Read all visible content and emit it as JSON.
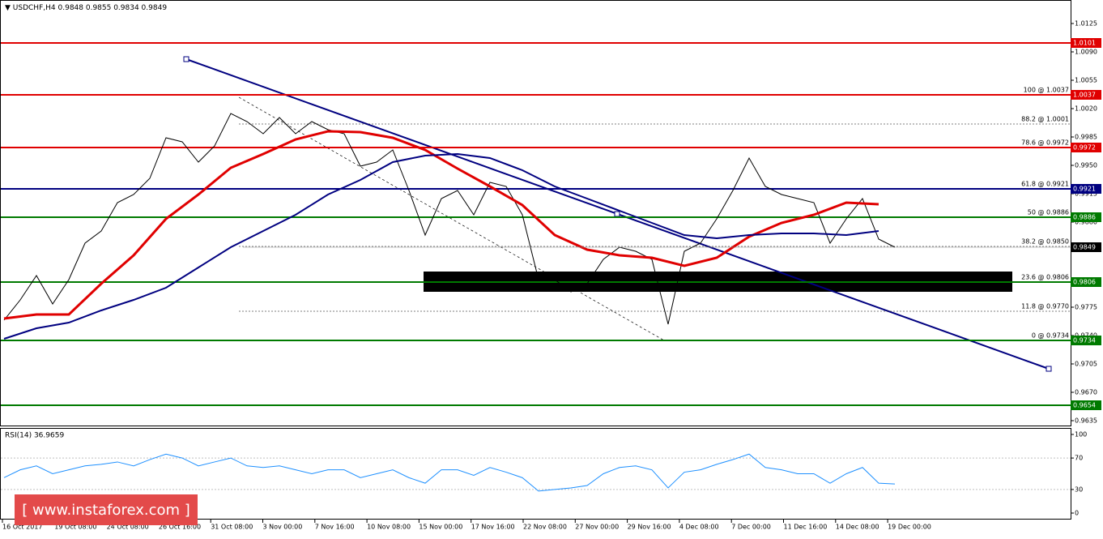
{
  "chart_data": {
    "type": "line",
    "title": "USDCHF,H4",
    "subtitle": "0.9848 0.9855 0.9834 0.9849",
    "ylim": [
      0.9629,
      1.0154
    ],
    "yticks": [
      {
        "value": 1.0125,
        "label": "1.0125"
      },
      {
        "value": 1.009,
        "label": "1.0090"
      },
      {
        "value": 1.0055,
        "label": "1.0055"
      },
      {
        "value": 1.002,
        "label": "1.0020"
      },
      {
        "value": 0.9985,
        "label": "0.9985"
      },
      {
        "value": 0.995,
        "label": "0.9950"
      },
      {
        "value": 0.9915,
        "label": "0.9915"
      },
      {
        "value": 0.988,
        "label": "0.9880"
      },
      {
        "value": 0.9775,
        "label": "0.9775"
      },
      {
        "value": 0.974,
        "label": "0.9740"
      },
      {
        "value": 0.9705,
        "label": "0.9705"
      },
      {
        "value": 0.967,
        "label": "0.9670"
      },
      {
        "value": 0.9635,
        "label": "0.9635"
      }
    ],
    "x_labels": [
      "16 Oct 2017",
      "19 Oct 08:00",
      "24 Oct 08:00",
      "26 Oct 16:00",
      "31 Oct 08:00",
      "3 Nov 00:00",
      "7 Nov 16:00",
      "10 Nov 08:00",
      "15 Nov 00:00",
      "17 Nov 16:00",
      "22 Nov 08:00",
      "27 Nov 00:00",
      "29 Nov 16:00",
      "4 Dec 08:00",
      "7 Dec 00:00",
      "11 Dec 16:00",
      "14 Dec 08:00",
      "19 Dec 00:00"
    ],
    "series": [
      {
        "color": "#000000",
        "values": [
          0.9759,
          0.9784,
          0.9814,
          0.9779,
          0.9809,
          0.9854,
          0.9869,
          0.9904,
          0.9914,
          0.9934,
          0.9984,
          0.9979,
          0.9954,
          0.9974,
          1.0014,
          1.0004,
          0.9989,
          1.0009,
          0.9989,
          1.0004,
          0.9994,
          0.9989,
          0.9949,
          0.9954,
          0.9969,
          0.9919,
          0.9864,
          0.9909,
          0.9919,
          0.9889,
          0.9929,
          0.9924,
          0.9889,
          0.9809,
          0.9809,
          0.9794,
          0.9804,
          0.9834,
          0.9849,
          0.9844,
          0.9834,
          0.9754,
          0.9844,
          0.9854,
          0.9884,
          0.9919,
          0.9959,
          0.9924,
          0.9914,
          0.9909,
          0.9904,
          0.9854,
          0.9884,
          0.9909,
          0.9859,
          0.9849
        ]
      },
      {
        "color": "#e00000",
        "values": [
          0.9761,
          0.9766,
          0.9766,
          0.9804,
          0.9839,
          0.9884,
          0.9914,
          0.9947,
          0.9964,
          0.9982,
          0.9992,
          0.9991,
          0.9984,
          0.9969,
          0.9946,
          0.9924,
          0.9901,
          0.9864,
          0.9846,
          0.9839,
          0.9836,
          0.9826,
          0.9836,
          0.9862,
          0.9879,
          0.9889,
          0.9904,
          0.9902
        ]
      },
      {
        "color": "#000080",
        "values": [
          0.9736,
          0.9749,
          0.9756,
          0.9771,
          0.9784,
          0.9799,
          0.9824,
          0.9849,
          0.9869,
          0.9889,
          0.9914,
          0.9932,
          0.9954,
          0.9962,
          0.9964,
          0.9959,
          0.9944,
          0.9924,
          0.9909,
          0.9894,
          0.9879,
          0.9864,
          0.986,
          0.9864,
          0.9866,
          0.9866,
          0.9864,
          0.9869
        ]
      }
    ],
    "levels": [
      {
        "value": 1.0101,
        "color": "#e00000"
      },
      {
        "value": 1.0037,
        "color": "#e00000"
      },
      {
        "value": 0.9972,
        "color": "#e00000"
      },
      {
        "value": 0.9921,
        "color": "#000080"
      },
      {
        "value": 0.9886,
        "color": "#007a00"
      },
      {
        "value": 0.9806,
        "color": "#007a00"
      },
      {
        "value": 0.9734,
        "color": "#007a00"
      },
      {
        "value": 0.9654,
        "color": "#007a00"
      }
    ],
    "fib_levels": [
      {
        "value": 1.0037,
        "label": "100 @ 1.0037"
      },
      {
        "value": 1.0001,
        "label": "88.2 @ 1.0001"
      },
      {
        "value": 0.9972,
        "label": "78.6 @ 0.9972"
      },
      {
        "value": 0.9921,
        "label": "61.8 @ 0.9921"
      },
      {
        "value": 0.9886,
        "label": "50 @ 0.9886"
      },
      {
        "value": 0.985,
        "label": "38.2 @ 0.9850"
      },
      {
        "value": 0.9806,
        "label": "23.6 @ 0.9806"
      },
      {
        "value": 0.977,
        "label": "11.8 @ 0.9770"
      },
      {
        "value": 0.9734,
        "label": "0 @ 0.9734"
      }
    ],
    "current_price": 0.9849,
    "rsi": {
      "title": "RSI(14) 36.9659",
      "ylim": [
        0,
        100
      ],
      "yticks": [
        100,
        70,
        30,
        0
      ],
      "color": "#1e90ff",
      "values": [
        45,
        55,
        60,
        50,
        55,
        60,
        62,
        65,
        60,
        68,
        75,
        70,
        60,
        65,
        70,
        60,
        58,
        60,
        55,
        50,
        55,
        55,
        45,
        50,
        55,
        45,
        38,
        55,
        55,
        48,
        58,
        52,
        45,
        28,
        30,
        32,
        35,
        50,
        58,
        60,
        55,
        32,
        52,
        55,
        62,
        68,
        75,
        58,
        55,
        50,
        50,
        38,
        50,
        58,
        38,
        37
      ]
    },
    "watermark": "[ www.instaforex.com ]"
  }
}
